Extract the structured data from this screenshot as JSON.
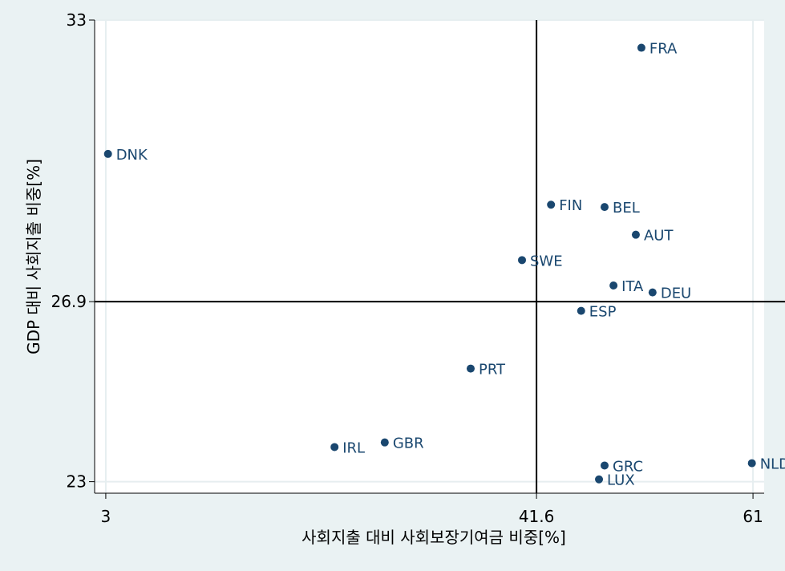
{
  "chart_data": {
    "type": "scatter",
    "xlabel": "사회지출 대비 사회보장기여금 비중[%]",
    "ylabel": "GDP 대비 사회지출 비중[%]",
    "xlim": [
      2.0,
      62.0
    ],
    "ylim": [
      22.75,
      33.0
    ],
    "xticks": [
      {
        "value": 3,
        "label": "3"
      },
      {
        "value": 41.6,
        "label": "41.6"
      },
      {
        "value": 61,
        "label": "61"
      }
    ],
    "yticks": [
      {
        "value": 23,
        "label": "23"
      },
      {
        "value": 26.9,
        "label": "26.9"
      },
      {
        "value": 33,
        "label": "33"
      }
    ],
    "reference_lines": {
      "x": 41.6,
      "y": 26.9
    },
    "grid": true,
    "marker_color": "#1a476f",
    "points": [
      {
        "label": "FRA",
        "x": 51.0,
        "y": 32.4
      },
      {
        "label": "DNK",
        "x": 3.2,
        "y": 30.1
      },
      {
        "label": "FIN",
        "x": 42.9,
        "y": 29.0
      },
      {
        "label": "BEL",
        "x": 47.7,
        "y": 28.95
      },
      {
        "label": "AUT",
        "x": 50.5,
        "y": 28.35
      },
      {
        "label": "SWE",
        "x": 40.3,
        "y": 27.8
      },
      {
        "label": "ITA",
        "x": 48.5,
        "y": 27.25
      },
      {
        "label": "DEU",
        "x": 52.0,
        "y": 27.1
      },
      {
        "label": "ESP",
        "x": 45.6,
        "y": 26.7
      },
      {
        "label": "PRT",
        "x": 35.7,
        "y": 25.45
      },
      {
        "label": "GBR",
        "x": 28.0,
        "y": 23.85
      },
      {
        "label": "IRL",
        "x": 23.5,
        "y": 23.75
      },
      {
        "label": "GRC",
        "x": 47.7,
        "y": 23.35
      },
      {
        "label": "NLD",
        "x": 60.9,
        "y": 23.4
      },
      {
        "label": "LUX",
        "x": 47.2,
        "y": 23.05
      }
    ]
  }
}
